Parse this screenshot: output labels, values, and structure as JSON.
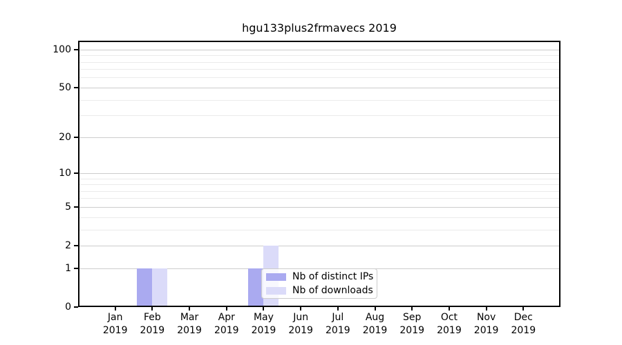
{
  "chart_data": {
    "type": "bar",
    "title": "hgu133plus2frmavecs 2019",
    "categories": [
      "Jan 2019",
      "Feb 2019",
      "Mar 2019",
      "Apr 2019",
      "May 2019",
      "Jun 2019",
      "Jul 2019",
      "Aug 2019",
      "Sep 2019",
      "Oct 2019",
      "Nov 2019",
      "Dec 2019"
    ],
    "series": [
      {
        "name": "Nb of distinct IPs",
        "color": "#aaaaf0",
        "values": [
          0,
          1,
          0,
          0,
          1,
          0,
          0,
          0,
          0,
          0,
          0,
          0
        ]
      },
      {
        "name": "Nb of downloads",
        "color": "#dbdbf9",
        "values": [
          0,
          1,
          0,
          0,
          2,
          0,
          0,
          0,
          0,
          0,
          0,
          0
        ]
      }
    ],
    "xlabel": "",
    "ylabel": "",
    "y_axis": {
      "scale": "log10(1+x)",
      "major_ticks": [
        0,
        1,
        2,
        5,
        10,
        20,
        50,
        100
      ],
      "minor_gridlines": [
        3,
        4,
        6,
        7,
        8,
        9,
        30,
        40,
        60,
        70,
        80,
        90
      ],
      "top_value": 118
    },
    "grid": "horizontal",
    "legend": {
      "position": "inside lower center",
      "entries": [
        "Nb of distinct IPs",
        "Nb of downloads"
      ]
    },
    "colors": {
      "major_grid": "#cccccc",
      "minor_grid": "#ebebeb",
      "spine": "#000000",
      "background": "#ffffff"
    }
  }
}
